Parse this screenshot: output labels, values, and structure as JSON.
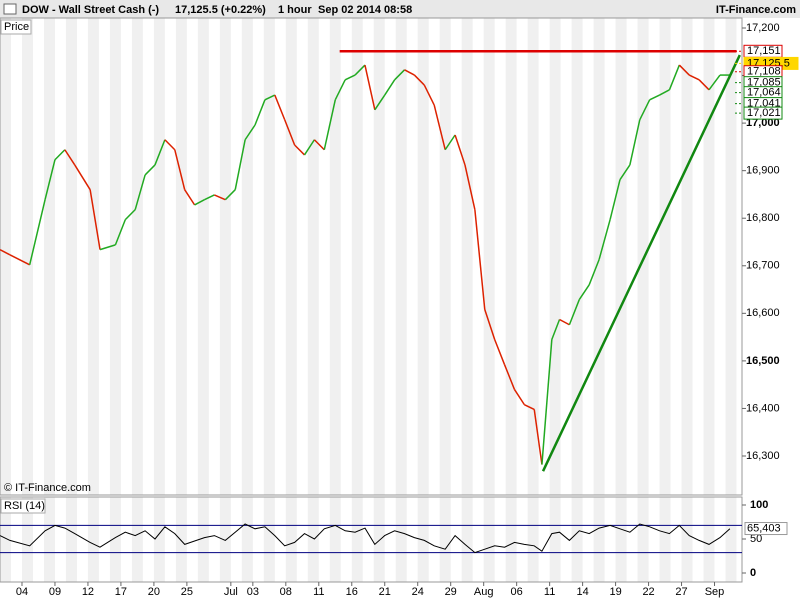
{
  "header": {
    "instrument": "DOW - Wall Street Cash (-)",
    "quote": "17,125.5 (+0.22%)",
    "interval": "1 hour",
    "timestamp": "Sep 02 2014 08:58",
    "brand": "IT-Finance.com"
  },
  "chart_data": {
    "type": "line",
    "panel_label": "Price",
    "watermark": "© IT-Finance.com",
    "x": [
      0,
      0.9,
      2.7,
      4.1,
      5,
      5.9,
      6.8,
      8.2,
      9.1,
      10.5,
      11.4,
      12.3,
      13.2,
      14.1,
      15,
      15.9,
      16.8,
      17.7,
      18.6,
      19.5,
      20.5,
      21.4,
      22.3,
      23.2,
      24.1,
      25,
      25.9,
      26.8,
      27.7,
      28.6,
      29.5,
      30.5,
      31.4,
      32.3,
      33.2,
      34.1,
      35,
      35.9,
      36.8,
      37.7,
      38.6,
      39.5,
      40.5,
      41.4,
      42.3,
      43.2,
      44.1,
      45,
      45.9,
      46.8,
      47.7,
      48.6,
      49.3,
      50.2,
      50.9,
      51.8,
      52.7,
      53.6,
      54.5,
      55.5,
      56.4,
      57.3,
      58.2,
      59.1,
      60,
      60.9,
      61.8,
      62.7,
      63.6,
      64.5,
      65.5,
      66.4
    ],
    "series": [
      {
        "name": "DOW",
        "up_color": "#22aa22",
        "down_color": "#dd2200",
        "values": [
          16734,
          16723,
          16702,
          16839,
          16923,
          16944,
          16912,
          16860,
          16734,
          16744,
          16797,
          16818,
          16891,
          16912,
          16965,
          16944,
          16860,
          16828,
          16839,
          16849,
          16839,
          16860,
          16965,
          16996,
          17049,
          17059,
          17007,
          16954,
          16933,
          16965,
          16944,
          17049,
          17091,
          17101,
          17122,
          17028,
          17059,
          17091,
          17112,
          17101,
          17080,
          17038,
          16944,
          16975,
          16912,
          16818,
          16608,
          16545,
          16492,
          16440,
          16408,
          16398,
          16282,
          16545,
          16587,
          16576,
          16629,
          16660,
          16713,
          16797,
          16881,
          16912,
          17007,
          17049,
          17059,
          17070,
          17122,
          17101,
          17091,
          17070,
          17101,
          17101
        ]
      }
    ],
    "xlim": [
      0,
      67.5
    ],
    "xticks": [
      {
        "value": 2,
        "label": "04"
      },
      {
        "value": 5,
        "label": "09"
      },
      {
        "value": 8,
        "label": "12"
      },
      {
        "value": 11,
        "label": "17"
      },
      {
        "value": 14,
        "label": "20"
      },
      {
        "value": 17,
        "label": "25"
      },
      {
        "value": 21,
        "label": "Jul"
      },
      {
        "value": 23,
        "label": "03"
      },
      {
        "value": 26,
        "label": "08"
      },
      {
        "value": 29,
        "label": "11"
      },
      {
        "value": 32,
        "label": "16"
      },
      {
        "value": 35,
        "label": "21"
      },
      {
        "value": 38,
        "label": "24"
      },
      {
        "value": 41,
        "label": "29"
      },
      {
        "value": 44,
        "label": "Aug"
      },
      {
        "value": 47,
        "label": "06"
      },
      {
        "value": 50,
        "label": "11"
      },
      {
        "value": 53,
        "label": "14"
      },
      {
        "value": 56,
        "label": "19"
      },
      {
        "value": 59,
        "label": "22"
      },
      {
        "value": 62,
        "label": "27"
      },
      {
        "value": 65,
        "label": "Sep"
      }
    ],
    "ylim": [
      16218,
      17221
    ],
    "yticks": [
      {
        "value": 16300,
        "label": "16,300"
      },
      {
        "value": 16400,
        "label": "16,400"
      },
      {
        "value": 16500,
        "label": "16,500"
      },
      {
        "value": 16600,
        "label": "16,600"
      },
      {
        "value": 16700,
        "label": "16,700"
      },
      {
        "value": 16800,
        "label": "16,800"
      },
      {
        "value": 16900,
        "label": "16,900"
      },
      {
        "value": 17000,
        "label": "17,000"
      },
      {
        "value": 17100,
        "label": "17,100"
      },
      {
        "value": 17200,
        "label": "17,200"
      }
    ],
    "levels": [
      {
        "value": 17151,
        "label": "17,151",
        "color": "#dd0000"
      },
      {
        "value": 17125.5,
        "label": "17,125.5",
        "color": "#ffd700"
      },
      {
        "value": 17108,
        "label": "17,108",
        "color": "#dd0000"
      },
      {
        "value": 17085,
        "label": "17,085",
        "color": "#118811"
      },
      {
        "value": 17064,
        "label": "17,064",
        "color": "#118811"
      },
      {
        "value": 17041,
        "label": "17,041",
        "color": "#118811"
      },
      {
        "value": 17021,
        "label": "17,021",
        "color": "#118811"
      }
    ],
    "trendlines": [
      {
        "x": [
          30.9,
          67.0
        ],
        "y": [
          17151,
          17151
        ],
        "color": "#dd0000"
      },
      {
        "x": [
          49.4,
          67.3
        ],
        "y": [
          16268,
          17143
        ],
        "color": "#118811"
      }
    ],
    "rsi": {
      "name": "RSI (14)",
      "color": "#000000",
      "band_color": "#000080",
      "values": [
        55,
        48,
        40,
        62,
        70,
        66,
        58,
        45,
        38,
        52,
        60,
        55,
        62,
        50,
        68,
        58,
        42,
        47,
        52,
        55,
        48,
        60,
        72,
        65,
        68,
        55,
        40,
        45,
        58,
        50,
        65,
        70,
        62,
        60,
        66,
        42,
        55,
        62,
        58,
        52,
        48,
        40,
        35,
        55,
        42,
        30,
        35,
        40,
        38,
        45,
        42,
        40,
        32,
        58,
        60,
        48,
        62,
        58,
        66,
        70,
        65,
        60,
        72,
        68,
        62,
        58,
        70,
        55,
        48,
        42,
        52,
        65
      ],
      "ylim": [
        0,
        100
      ],
      "yticks": [
        0,
        50,
        100
      ],
      "bands": [
        30,
        70
      ],
      "current": {
        "value": 65.403,
        "label": "65,403"
      }
    }
  }
}
